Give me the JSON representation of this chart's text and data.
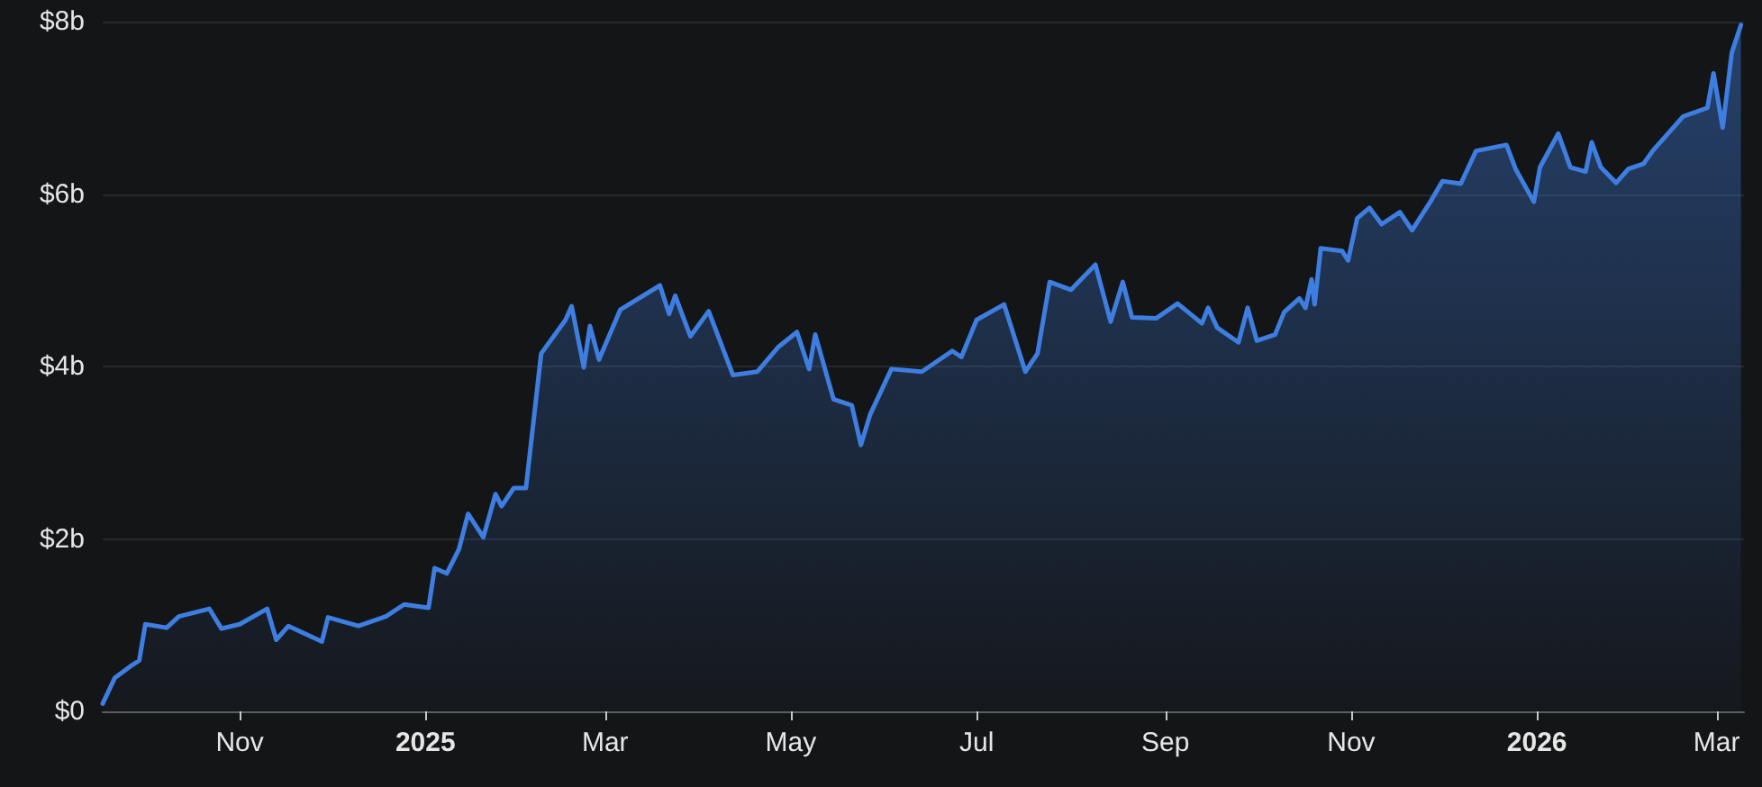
{
  "chart_data": {
    "type": "area",
    "xlim": [
      "2024-09-17",
      "2026-03-10"
    ],
    "ylim": [
      0,
      8
    ],
    "xticks": [
      {
        "value": "2024-11-01",
        "label": "Nov"
      },
      {
        "value": "2025-01-01",
        "label": "2025"
      },
      {
        "value": "2025-03-01",
        "label": "Mar"
      },
      {
        "value": "2025-05-01",
        "label": "May"
      },
      {
        "value": "2025-07-01",
        "label": "Jul"
      },
      {
        "value": "2025-09-01",
        "label": "Sep"
      },
      {
        "value": "2025-11-01",
        "label": "Nov"
      },
      {
        "value": "2026-01-01",
        "label": "2026"
      },
      {
        "value": "2026-03-01",
        "label": "Mar"
      }
    ],
    "yticks": [
      {
        "value": 0,
        "label": "$0"
      },
      {
        "value": 2,
        "label": "$2b"
      },
      {
        "value": 4,
        "label": "$4b"
      },
      {
        "value": 6,
        "label": "$6b"
      },
      {
        "value": 8,
        "label": "$8b"
      }
    ],
    "grid": "y",
    "marker": "none",
    "line_style": "solid",
    "x": [
      "2024-09-17",
      "2024-09-21",
      "2024-09-26",
      "2024-09-29",
      "2024-10-01",
      "2024-10-08",
      "2024-10-12",
      "2024-10-22",
      "2024-10-26",
      "2024-11-01",
      "2024-11-10",
      "2024-11-13",
      "2024-11-17",
      "2024-11-28",
      "2024-11-30",
      "2024-12-10",
      "2024-12-19",
      "2024-12-25",
      "2025-01-02",
      "2025-01-04",
      "2025-01-08",
      "2025-01-12",
      "2025-01-15",
      "2025-01-20",
      "2025-01-24",
      "2025-01-26",
      "2025-01-30",
      "2025-02-03",
      "2025-02-08",
      "2025-02-16",
      "2025-02-18",
      "2025-02-22",
      "2025-02-24",
      "2025-02-27",
      "2025-03-06",
      "2025-03-19",
      "2025-03-22",
      "2025-03-24",
      "2025-03-29",
      "2025-04-04",
      "2025-04-12",
      "2025-04-20",
      "2025-04-27",
      "2025-05-03",
      "2025-05-07",
      "2025-05-09",
      "2025-05-15",
      "2025-05-21",
      "2025-05-24",
      "2025-05-27",
      "2025-06-03",
      "2025-06-13",
      "2025-06-23",
      "2025-06-26",
      "2025-07-01",
      "2025-07-10",
      "2025-07-17",
      "2025-07-21",
      "2025-07-25",
      "2025-08-01",
      "2025-08-09",
      "2025-08-14",
      "2025-08-18",
      "2025-08-21",
      "2025-08-29",
      "2025-09-05",
      "2025-09-13",
      "2025-09-15",
      "2025-09-18",
      "2025-09-25",
      "2025-09-28",
      "2025-10-01",
      "2025-10-07",
      "2025-10-10",
      "2025-10-15",
      "2025-10-17",
      "2025-10-19",
      "2025-10-20",
      "2025-10-22",
      "2025-10-29",
      "2025-10-31",
      "2025-11-03",
      "2025-11-07",
      "2025-11-11",
      "2025-11-17",
      "2025-11-21",
      "2025-11-27",
      "2025-12-01",
      "2025-12-07",
      "2025-12-12",
      "2025-12-22",
      "2025-12-25",
      "2025-12-31",
      "2026-01-02",
      "2026-01-08",
      "2026-01-12",
      "2026-01-17",
      "2026-01-19",
      "2026-01-22",
      "2026-01-27",
      "2026-01-31",
      "2026-02-05",
      "2026-02-08",
      "2026-02-18",
      "2026-02-26",
      "2026-02-28",
      "2026-03-03",
      "2026-03-06",
      "2026-03-09"
    ],
    "series": [
      {
        "color": "#3d7ee0",
        "values": [
          0.09,
          0.39,
          0.52,
          0.59,
          1.01,
          0.97,
          1.1,
          1.19,
          0.96,
          1.01,
          1.19,
          0.83,
          0.99,
          0.81,
          1.09,
          0.99,
          1.1,
          1.24,
          1.2,
          1.66,
          1.6,
          1.88,
          2.29,
          2.02,
          2.52,
          2.38,
          2.59,
          2.59,
          4.15,
          4.54,
          4.7,
          3.99,
          4.47,
          4.08,
          4.66,
          4.94,
          4.61,
          4.82,
          4.35,
          4.64,
          3.9,
          3.94,
          4.23,
          4.4,
          3.97,
          4.37,
          3.62,
          3.55,
          3.09,
          3.44,
          3.97,
          3.94,
          4.18,
          4.11,
          4.54,
          4.72,
          3.94,
          4.15,
          4.98,
          4.89,
          5.18,
          4.52,
          4.98,
          4.57,
          4.56,
          4.73,
          4.5,
          4.68,
          4.45,
          4.28,
          4.68,
          4.3,
          4.37,
          4.63,
          4.79,
          4.68,
          5.01,
          4.72,
          5.37,
          5.34,
          5.23,
          5.72,
          5.84,
          5.65,
          5.79,
          5.58,
          5.91,
          6.15,
          6.12,
          6.5,
          6.57,
          6.29,
          5.91,
          6.31,
          6.7,
          6.31,
          6.26,
          6.6,
          6.31,
          6.13,
          6.29,
          6.35,
          6.5,
          6.9,
          7.0,
          7.4,
          6.77,
          7.64,
          7.96
        ]
      }
    ]
  }
}
